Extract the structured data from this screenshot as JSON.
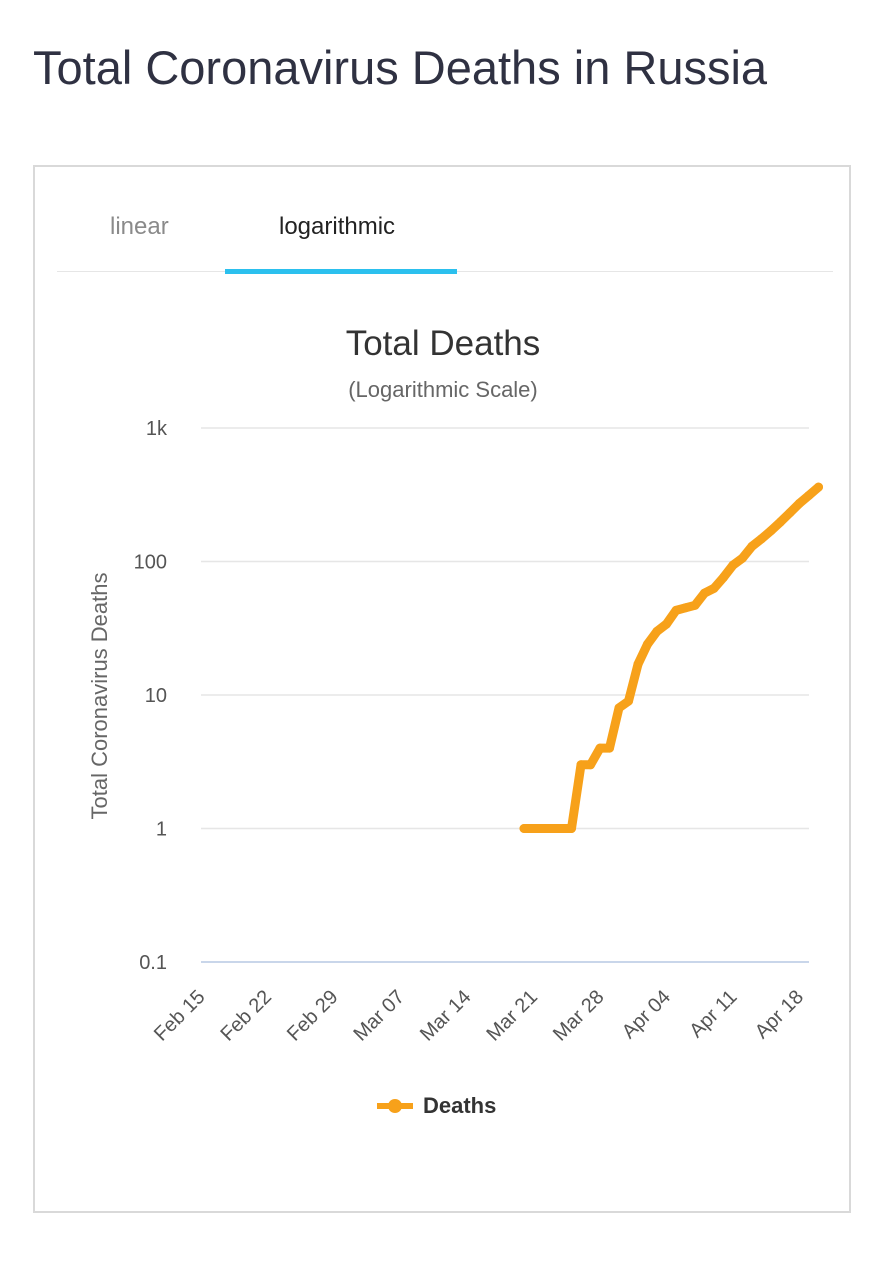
{
  "page": {
    "title": "Total Coronavirus Deaths in Russia"
  },
  "tabs": [
    {
      "label": "linear",
      "active": false
    },
    {
      "label": "logarithmic",
      "active": true
    }
  ],
  "colors": {
    "series": "#f7a11a",
    "tab_accent": "#2bc0ee",
    "grid": "#e6e6e6",
    "baseline": "#c9d6ea"
  },
  "chart_data": {
    "type": "line",
    "title": "Total Deaths",
    "subtitle": "(Logarithmic Scale)",
    "xlabel": "",
    "ylabel": "Total Coronavirus Deaths",
    "yscale": "log",
    "ylim": [
      0.1,
      1000
    ],
    "y_ticks": [
      {
        "value": 0.1,
        "label": "0.1"
      },
      {
        "value": 1,
        "label": "1"
      },
      {
        "value": 10,
        "label": "10"
      },
      {
        "value": 100,
        "label": "100"
      },
      {
        "value": 1000,
        "label": "1k"
      }
    ],
    "xlim": [
      "2020-02-15",
      "2020-04-19"
    ],
    "x_ticks": [
      {
        "date": "2020-02-15",
        "label": "Feb 15"
      },
      {
        "date": "2020-02-22",
        "label": "Feb 22"
      },
      {
        "date": "2020-02-29",
        "label": "Feb 29"
      },
      {
        "date": "2020-03-07",
        "label": "Mar 07"
      },
      {
        "date": "2020-03-14",
        "label": "Mar 14"
      },
      {
        "date": "2020-03-21",
        "label": "Mar 21"
      },
      {
        "date": "2020-03-28",
        "label": "Mar 28"
      },
      {
        "date": "2020-04-04",
        "label": "Apr 04"
      },
      {
        "date": "2020-04-11",
        "label": "Apr 11"
      },
      {
        "date": "2020-04-18",
        "label": "Apr 18"
      }
    ],
    "grid": true,
    "legend": "bottom-center",
    "series": [
      {
        "name": "Deaths",
        "points": [
          {
            "x": "2020-03-20",
            "y": 1
          },
          {
            "x": "2020-03-21",
            "y": 1
          },
          {
            "x": "2020-03-22",
            "y": 1
          },
          {
            "x": "2020-03-23",
            "y": 1
          },
          {
            "x": "2020-03-24",
            "y": 1
          },
          {
            "x": "2020-03-25",
            "y": 1
          },
          {
            "x": "2020-03-26",
            "y": 3
          },
          {
            "x": "2020-03-27",
            "y": 3
          },
          {
            "x": "2020-03-28",
            "y": 4
          },
          {
            "x": "2020-03-29",
            "y": 4
          },
          {
            "x": "2020-03-30",
            "y": 8
          },
          {
            "x": "2020-03-31",
            "y": 9
          },
          {
            "x": "2020-04-01",
            "y": 17
          },
          {
            "x": "2020-04-02",
            "y": 24
          },
          {
            "x": "2020-04-03",
            "y": 30
          },
          {
            "x": "2020-04-04",
            "y": 34
          },
          {
            "x": "2020-04-05",
            "y": 43
          },
          {
            "x": "2020-04-06",
            "y": 45
          },
          {
            "x": "2020-04-07",
            "y": 47
          },
          {
            "x": "2020-04-08",
            "y": 58
          },
          {
            "x": "2020-04-09",
            "y": 63
          },
          {
            "x": "2020-04-10",
            "y": 76
          },
          {
            "x": "2020-04-11",
            "y": 94
          },
          {
            "x": "2020-04-12",
            "y": 106
          },
          {
            "x": "2020-04-13",
            "y": 130
          },
          {
            "x": "2020-04-14",
            "y": 148
          },
          {
            "x": "2020-04-15",
            "y": 170
          },
          {
            "x": "2020-04-16",
            "y": 198
          },
          {
            "x": "2020-04-17",
            "y": 232
          },
          {
            "x": "2020-04-18",
            "y": 273
          },
          {
            "x": "2020-04-19",
            "y": 313
          },
          {
            "x": "2020-04-20",
            "y": 361
          }
        ]
      }
    ]
  }
}
